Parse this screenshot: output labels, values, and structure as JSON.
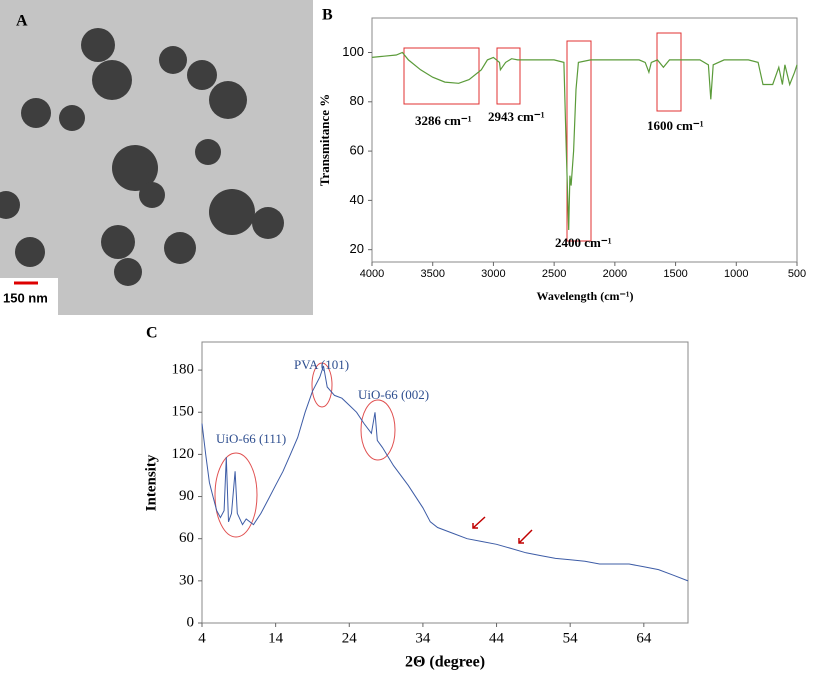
{
  "panel_a": {
    "label": "A",
    "scale_bar": "150 nm"
  },
  "chart_data": [
    {
      "type": "line",
      "panel": "B",
      "xlabel": "Wavelength (cm⁻¹)",
      "ylabel": "Transmitance %",
      "xlim": [
        4000,
        500
      ],
      "xticks": [
        4000,
        3500,
        3000,
        2500,
        2000,
        1500,
        1000,
        500
      ],
      "ylim": [
        15,
        114
      ],
      "yticks": [
        20,
        40,
        60,
        80,
        100
      ],
      "color": "#5b9b3a",
      "x": [
        4000,
        3900,
        3800,
        3750,
        3700,
        3600,
        3500,
        3400,
        3286,
        3200,
        3100,
        3050,
        3000,
        2950,
        2943,
        2900,
        2850,
        2800,
        2500,
        2420,
        2400,
        2380,
        2370,
        2360,
        2340,
        2320,
        2300,
        2200,
        2000,
        1800,
        1750,
        1720,
        1700,
        1650,
        1600,
        1550,
        1450,
        1300,
        1230,
        1210,
        1190,
        1100,
        900,
        820,
        780,
        700,
        650,
        620,
        600,
        560,
        520,
        500
      ],
      "series": [
        {
          "values": [
            98,
            98.5,
            99,
            100,
            97,
            93,
            90,
            88,
            87.5,
            89,
            93,
            97,
            98,
            96,
            93,
            96,
            97.5,
            97,
            97,
            96,
            60,
            28,
            50,
            46,
            60,
            85,
            96,
            97,
            97,
            97,
            96,
            92,
            96,
            97,
            94,
            97,
            97,
            97,
            95,
            81,
            95,
            97,
            97,
            96,
            87,
            87,
            94,
            87,
            95,
            87,
            92,
            95
          ]
        }
      ],
      "annotations": [
        "3286 cm⁻¹",
        "2943 cm⁻¹",
        "2400 cm⁻¹",
        "1600 cm⁻¹"
      ]
    },
    {
      "type": "line",
      "panel": "C",
      "xlabel": "2Θ (degree)",
      "ylabel": "Intensity",
      "xlim": [
        4,
        70
      ],
      "xticks": [
        4,
        14,
        24,
        34,
        44,
        54,
        64
      ],
      "ylim": [
        0,
        200
      ],
      "yticks": [
        0,
        30,
        60,
        90,
        120,
        150,
        180
      ],
      "color": "#3d5ca6",
      "x": [
        4,
        4.5,
        5,
        5.5,
        6,
        6.5,
        7,
        7.3,
        7.6,
        8,
        8.5,
        8.8,
        9.5,
        10,
        11,
        12,
        13,
        14,
        15,
        16,
        17,
        18,
        19,
        20,
        20.5,
        21,
        22,
        23,
        24,
        25,
        26,
        27,
        27.5,
        27.8,
        28.5,
        30,
        32,
        34,
        35,
        36,
        38,
        40,
        42,
        44,
        46,
        48,
        50,
        52,
        54,
        56,
        58,
        60,
        62,
        64,
        66,
        68,
        70
      ],
      "series": [
        {
          "values": [
            142,
            120,
            100,
            90,
            80,
            75,
            80,
            118,
            72,
            78,
            108,
            78,
            70,
            74,
            70,
            78,
            88,
            98,
            108,
            120,
            132,
            150,
            165,
            175,
            183,
            168,
            162,
            160,
            155,
            150,
            142,
            135,
            150,
            130,
            125,
            112,
            98,
            82,
            72,
            68,
            64,
            60,
            58,
            56,
            53,
            50,
            48,
            46,
            45,
            44,
            42,
            42,
            42,
            40,
            38,
            34,
            30
          ]
        }
      ],
      "annotations": [
        "UiO-66 (111)",
        "PVA (101)",
        "UiO-66 (002)"
      ]
    }
  ]
}
